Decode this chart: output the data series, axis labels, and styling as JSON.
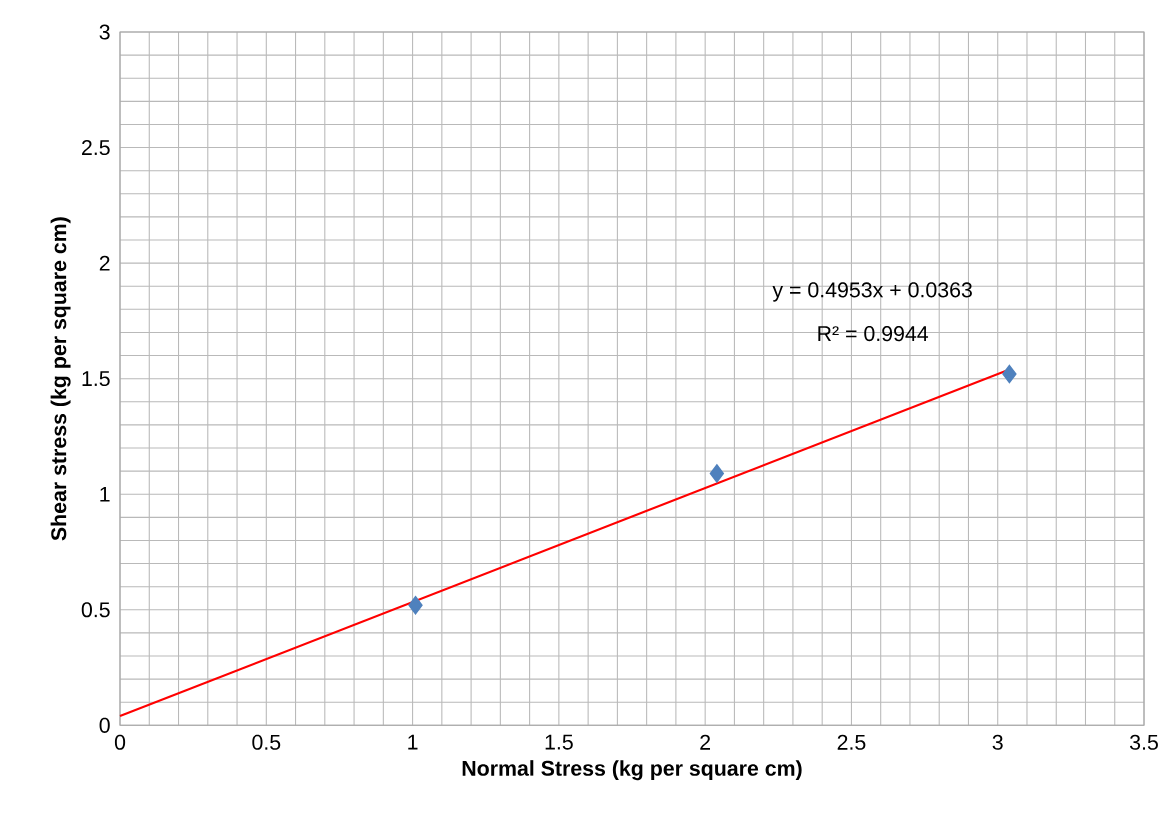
{
  "chart_data": {
    "type": "scatter",
    "xlabel": "Normal Stress (kg per square cm)",
    "ylabel": "Shear stress (kg per square cm)",
    "x": [
      1.01,
      2.04,
      3.04
    ],
    "series": [
      {
        "color": "#4f81bd",
        "marker": "diamond",
        "values": [
          0.52,
          1.09,
          1.52
        ]
      },
      {
        "type": "line",
        "color": "#ff0000",
        "marker": "none",
        "x": [
          0,
          3.04
        ],
        "values": [
          0.04,
          1.54
        ]
      }
    ],
    "annotations": [
      "y = 0.4953x + 0.0363",
      "R² = 0.9944"
    ],
    "xlim": [
      0,
      3.5
    ],
    "ylim": [
      0,
      3
    ],
    "xticks": [
      0,
      0.5,
      1,
      1.5,
      2,
      2.5,
      3,
      3.5
    ],
    "yticks": [
      0,
      0.5,
      1,
      1.5,
      2,
      2.5,
      3
    ],
    "grid": true
  }
}
